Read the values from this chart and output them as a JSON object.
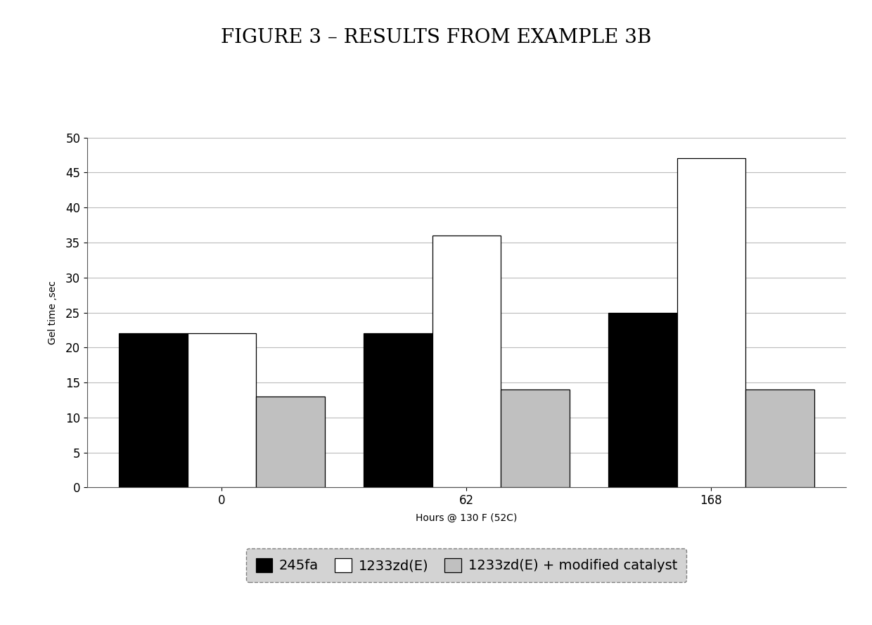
{
  "title": "FIGURE 3 – RESULTS FROM EXAMPLE 3B",
  "xlabel": "Hours @ 130 F (52C)",
  "ylabel": "Gel time ,sec",
  "categories": [
    "0",
    "62",
    "168"
  ],
  "series": {
    "245fa": [
      22,
      22,
      25
    ],
    "1233zd(E)": [
      22,
      36,
      47
    ],
    "1233zd(E) + modified catalyst": [
      13,
      14,
      14
    ]
  },
  "colors": {
    "245fa": "#000000",
    "1233zd(E)": "#ffffff",
    "1233zd(E) + modified catalyst": "#c0c0c0"
  },
  "ylim": [
    0,
    50
  ],
  "yticks": [
    0,
    5,
    10,
    15,
    20,
    25,
    30,
    35,
    40,
    45,
    50
  ],
  "bar_edge_color": "#000000",
  "bar_width": 0.28,
  "background_color": "#ffffff",
  "grid_color": "#bbbbbb",
  "title_fontsize": 20,
  "axis_label_fontsize": 10,
  "tick_fontsize": 12,
  "legend_fontsize": 14,
  "legend_bg": "#c8c8c8",
  "legend_edge": "#666666"
}
